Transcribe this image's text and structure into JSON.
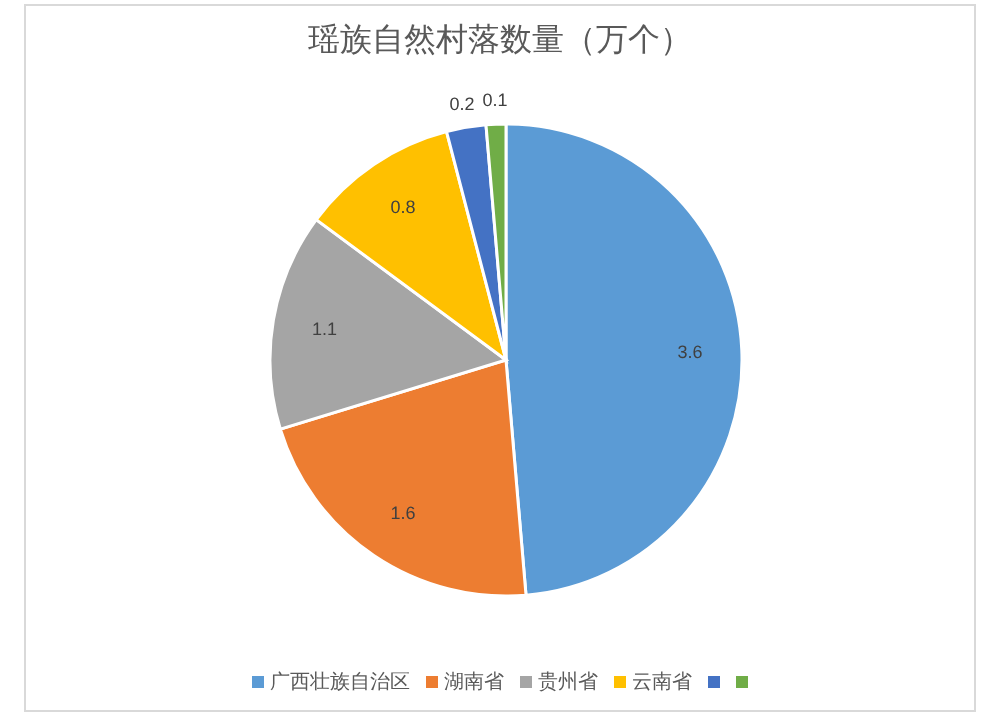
{
  "chart_data": {
    "type": "pie",
    "title": "瑶族自然村落数量（万个）",
    "categories": [
      "广西壮族自治区",
      "湖南省",
      "贵州省",
      "云南省",
      null,
      null
    ],
    "values": [
      3.6,
      1.6,
      1.1,
      0.8,
      0.2,
      0.1
    ],
    "colors": [
      "#5b9bd5",
      "#ed7d31",
      "#a5a5a5",
      "#ffc000",
      "#4472c4",
      "#70ad47"
    ],
    "data_labels": true,
    "legend": "bottom"
  }
}
